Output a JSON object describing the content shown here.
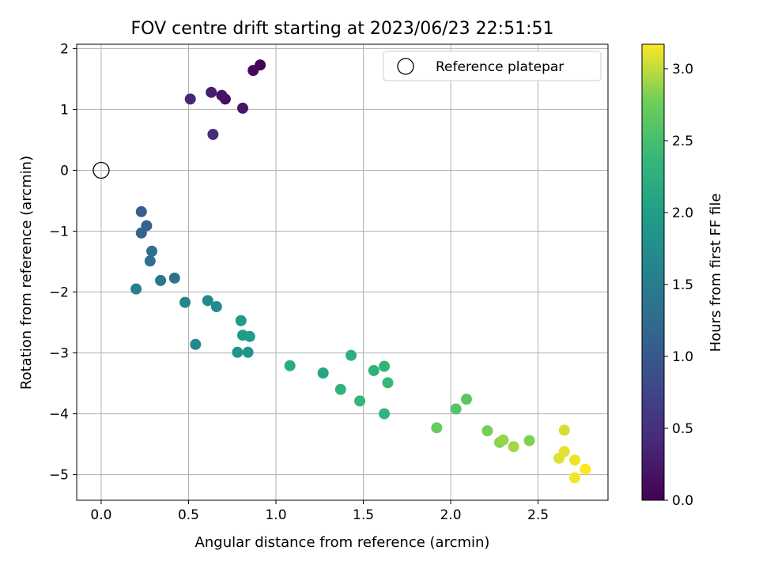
{
  "chart_data": {
    "type": "scatter",
    "title": "FOV centre drift starting at 2023/06/23 22:51:51",
    "xlabel": "Angular distance from reference (arcmin)",
    "ylabel": "Rotation from reference (arcmin)",
    "xlim": [
      -0.14,
      2.9
    ],
    "ylim": [
      -5.42,
      2.07
    ],
    "xticks": [
      0.0,
      0.5,
      1.0,
      1.5,
      2.0,
      2.5
    ],
    "xtick_labels": [
      "0.0",
      "0.5",
      "1.0",
      "1.5",
      "2.0",
      "2.5"
    ],
    "yticks": [
      2,
      1,
      0,
      -1,
      -2,
      -3,
      -4,
      -5
    ],
    "ytick_labels": [
      "2",
      "1",
      "0",
      "−1",
      "−2",
      "−3",
      "−4",
      "−5"
    ],
    "grid": true,
    "legend": {
      "position": "top-right",
      "label": "Reference platepar"
    },
    "reference_point": {
      "x": 0.0,
      "y": 0.0
    },
    "colorbar": {
      "label": "Hours from first FF file",
      "range": [
        0.0,
        3.17
      ],
      "ticks": [
        0.0,
        0.5,
        1.0,
        1.5,
        2.0,
        2.5,
        3.0
      ],
      "tick_labels": [
        "0.0",
        "0.5",
        "1.0",
        "1.5",
        "2.0",
        "2.5",
        "3.0"
      ],
      "colormap": "viridis"
    },
    "points": [
      {
        "x": 0.91,
        "y": 1.73,
        "h": 0.02
      },
      {
        "x": 0.87,
        "y": 1.64,
        "h": 0.07
      },
      {
        "x": 0.71,
        "y": 1.17,
        "h": 0.12
      },
      {
        "x": 0.69,
        "y": 1.23,
        "h": 0.17
      },
      {
        "x": 0.81,
        "y": 1.02,
        "h": 0.22
      },
      {
        "x": 0.63,
        "y": 1.28,
        "h": 0.28
      },
      {
        "x": 0.51,
        "y": 1.17,
        "h": 0.38
      },
      {
        "x": 0.64,
        "y": 0.59,
        "h": 0.48
      },
      {
        "x": 0.23,
        "y": -0.68,
        "h": 1.05
      },
      {
        "x": 0.26,
        "y": -0.91,
        "h": 1.12
      },
      {
        "x": 0.23,
        "y": -1.03,
        "h": 1.15
      },
      {
        "x": 0.29,
        "y": -1.33,
        "h": 1.28
      },
      {
        "x": 0.28,
        "y": -1.49,
        "h": 1.32
      },
      {
        "x": 0.42,
        "y": -1.77,
        "h": 1.35
      },
      {
        "x": 0.34,
        "y": -1.81,
        "h": 1.4
      },
      {
        "x": 0.2,
        "y": -1.95,
        "h": 1.55
      },
      {
        "x": 0.48,
        "y": -2.17,
        "h": 1.63
      },
      {
        "x": 0.61,
        "y": -2.14,
        "h": 1.68
      },
      {
        "x": 0.66,
        "y": -2.24,
        "h": 1.72
      },
      {
        "x": 0.54,
        "y": -2.86,
        "h": 1.65
      },
      {
        "x": 0.8,
        "y": -2.47,
        "h": 1.92
      },
      {
        "x": 0.81,
        "y": -2.71,
        "h": 1.95
      },
      {
        "x": 0.85,
        "y": -2.73,
        "h": 1.98
      },
      {
        "x": 0.78,
        "y": -2.99,
        "h": 1.85
      },
      {
        "x": 0.84,
        "y": -2.99,
        "h": 1.88
      },
      {
        "x": 1.08,
        "y": -3.21,
        "h": 2.18
      },
      {
        "x": 1.27,
        "y": -3.33,
        "h": 2.1
      },
      {
        "x": 1.43,
        "y": -3.04,
        "h": 2.25
      },
      {
        "x": 1.37,
        "y": -3.6,
        "h": 2.3
      },
      {
        "x": 1.48,
        "y": -3.79,
        "h": 2.38
      },
      {
        "x": 1.56,
        "y": -3.29,
        "h": 2.28
      },
      {
        "x": 1.62,
        "y": -3.22,
        "h": 2.35
      },
      {
        "x": 1.64,
        "y": -3.49,
        "h": 2.4
      },
      {
        "x": 1.62,
        "y": -4.0,
        "h": 2.33
      },
      {
        "x": 1.92,
        "y": -4.23,
        "h": 2.72
      },
      {
        "x": 2.03,
        "y": -3.92,
        "h": 2.6
      },
      {
        "x": 2.09,
        "y": -3.76,
        "h": 2.65
      },
      {
        "x": 2.21,
        "y": -4.28,
        "h": 2.8
      },
      {
        "x": 2.28,
        "y": -4.47,
        "h": 2.85
      },
      {
        "x": 2.3,
        "y": -4.43,
        "h": 2.88
      },
      {
        "x": 2.36,
        "y": -4.54,
        "h": 2.92
      },
      {
        "x": 2.45,
        "y": -4.44,
        "h": 2.82
      },
      {
        "x": 2.65,
        "y": -4.27,
        "h": 3.05
      },
      {
        "x": 2.65,
        "y": -4.62,
        "h": 3.1
      },
      {
        "x": 2.62,
        "y": -4.73,
        "h": 3.08
      },
      {
        "x": 2.71,
        "y": -4.76,
        "h": 3.12
      },
      {
        "x": 2.71,
        "y": -5.05,
        "h": 3.14
      },
      {
        "x": 2.77,
        "y": -4.91,
        "h": 3.17
      }
    ]
  }
}
